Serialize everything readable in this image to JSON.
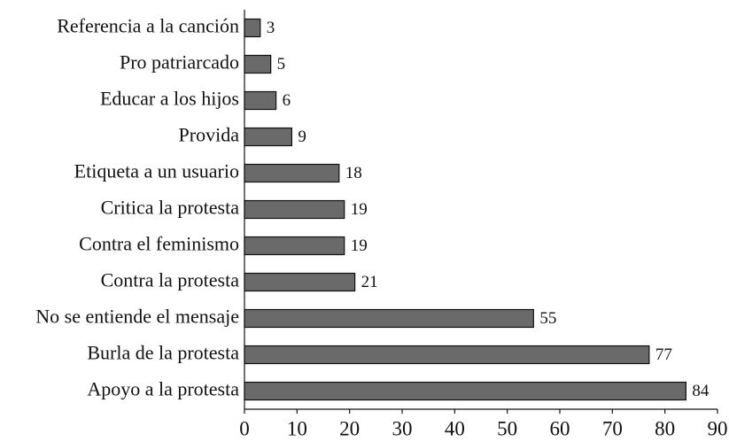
{
  "chart_data": {
    "type": "bar",
    "orientation": "horizontal",
    "categories": [
      "Referencia a la canción",
      "Pro patriarcado",
      "Educar a los hijos",
      "Provida",
      "Etiqueta a un usuario",
      "Critica la protesta",
      "Contra el feminismo",
      "Contra la protesta",
      "No se entiende el mensaje",
      "Burla de la protesta",
      "Apoyo a la protesta"
    ],
    "values": [
      3,
      5,
      6,
      9,
      18,
      19,
      19,
      21,
      55,
      77,
      84
    ],
    "color": "#6a6a6a",
    "xlim": [
      0,
      90
    ],
    "xticks": [
      0,
      10,
      20,
      30,
      40,
      50,
      60,
      70,
      80,
      90
    ]
  }
}
